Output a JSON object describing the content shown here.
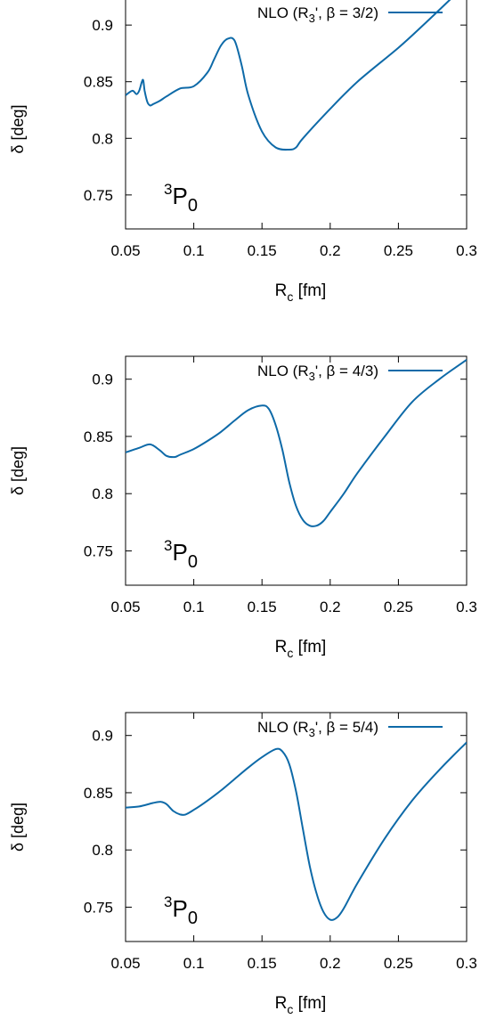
{
  "chart_data": [
    {
      "type": "line",
      "xlabel": "R",
      "xlabel_sub": "c",
      "xlabel_unit": " [fm]",
      "ylabel": "δ [deg]",
      "xlim": [
        0.05,
        0.3
      ],
      "ylim": [
        0.72,
        0.93
      ],
      "xticks": [
        0.05,
        0.1,
        0.15,
        0.2,
        0.25,
        0.3
      ],
      "xtick_labels": [
        "0.05",
        "0.1",
        "0.15",
        "0.2",
        "0.25",
        "0.3"
      ],
      "yticks": [
        0.75,
        0.8,
        0.85,
        0.9
      ],
      "ytick_labels": [
        "0.75",
        "0.8",
        "0.85",
        "0.9"
      ],
      "grid": false,
      "legend_position": "top-right",
      "annotation": {
        "sup": "3",
        "main": "P",
        "sub": "0"
      },
      "series": [
        {
          "name": "NLO (R3', β = 3/2)",
          "legend": {
            "pre": "NLO (R",
            "sub": "3",
            "post": "', β = 3/2)"
          },
          "color": "#0e6aa8",
          "x": [
            0.05,
            0.055,
            0.058,
            0.06,
            0.062,
            0.063,
            0.064,
            0.066,
            0.068,
            0.07,
            0.075,
            0.08,
            0.09,
            0.1,
            0.11,
            0.115,
            0.12,
            0.125,
            0.13,
            0.135,
            0.14,
            0.15,
            0.16,
            0.17,
            0.175,
            0.18,
            0.2,
            0.22,
            0.25,
            0.27,
            0.29
          ],
          "y": [
            0.838,
            0.842,
            0.839,
            0.842,
            0.85,
            0.851,
            0.842,
            0.832,
            0.829,
            0.83,
            0.833,
            0.837,
            0.844,
            0.846,
            0.858,
            0.87,
            0.882,
            0.888,
            0.886,
            0.865,
            0.838,
            0.806,
            0.792,
            0.79,
            0.792,
            0.8,
            0.826,
            0.85,
            0.88,
            0.902,
            0.925
          ]
        }
      ]
    },
    {
      "type": "line",
      "xlabel": "R",
      "xlabel_sub": "c",
      "xlabel_unit": " [fm]",
      "ylabel": "δ [deg]",
      "xlim": [
        0.05,
        0.3
      ],
      "ylim": [
        0.72,
        0.92
      ],
      "xticks": [
        0.05,
        0.1,
        0.15,
        0.2,
        0.25,
        0.3
      ],
      "xtick_labels": [
        "0.05",
        "0.1",
        "0.15",
        "0.2",
        "0.25",
        "0.3"
      ],
      "yticks": [
        0.75,
        0.8,
        0.85,
        0.9
      ],
      "ytick_labels": [
        "0.75",
        "0.8",
        "0.85",
        "0.9"
      ],
      "grid": false,
      "legend_position": "top-right",
      "annotation": {
        "sup": "3",
        "main": "P",
        "sub": "0"
      },
      "series": [
        {
          "name": "NLO (R3', β = 4/3)",
          "legend": {
            "pre": "NLO (R",
            "sub": "3",
            "post": "', β = 4/3)"
          },
          "color": "#0e6aa8",
          "x": [
            0.05,
            0.06,
            0.068,
            0.075,
            0.08,
            0.086,
            0.09,
            0.1,
            0.11,
            0.12,
            0.13,
            0.14,
            0.15,
            0.155,
            0.16,
            0.165,
            0.17,
            0.175,
            0.18,
            0.185,
            0.19,
            0.195,
            0.2,
            0.21,
            0.22,
            0.24,
            0.26,
            0.28,
            0.3
          ],
          "y": [
            0.836,
            0.84,
            0.843,
            0.838,
            0.833,
            0.832,
            0.834,
            0.839,
            0.846,
            0.854,
            0.864,
            0.873,
            0.877,
            0.874,
            0.86,
            0.838,
            0.81,
            0.789,
            0.777,
            0.772,
            0.772,
            0.776,
            0.784,
            0.8,
            0.818,
            0.85,
            0.88,
            0.9,
            0.917
          ]
        }
      ]
    },
    {
      "type": "line",
      "xlabel": "R",
      "xlabel_sub": "c",
      "xlabel_unit": " [fm]",
      "ylabel": "δ [deg]",
      "xlim": [
        0.05,
        0.3
      ],
      "ylim": [
        0.72,
        0.92
      ],
      "xticks": [
        0.05,
        0.1,
        0.15,
        0.2,
        0.25,
        0.3
      ],
      "xtick_labels": [
        "0.05",
        "0.1",
        "0.15",
        "0.2",
        "0.25",
        "0.3"
      ],
      "yticks": [
        0.75,
        0.8,
        0.85,
        0.9
      ],
      "ytick_labels": [
        "0.75",
        "0.8",
        "0.85",
        "0.9"
      ],
      "grid": false,
      "legend_position": "top-right",
      "annotation": {
        "sup": "3",
        "main": "P",
        "sub": "0"
      },
      "series": [
        {
          "name": "NLO (R3', β = 5/4)",
          "legend": {
            "pre": "NLO (R",
            "sub": "3",
            "post": "', β = 5/4)"
          },
          "color": "#0e6aa8",
          "x": [
            0.05,
            0.06,
            0.07,
            0.076,
            0.08,
            0.085,
            0.09,
            0.094,
            0.1,
            0.11,
            0.12,
            0.13,
            0.14,
            0.15,
            0.16,
            0.165,
            0.17,
            0.175,
            0.18,
            0.185,
            0.19,
            0.195,
            0.2,
            0.205,
            0.21,
            0.22,
            0.24,
            0.26,
            0.28,
            0.3
          ],
          "y": [
            0.837,
            0.838,
            0.841,
            0.842,
            0.84,
            0.834,
            0.831,
            0.831,
            0.835,
            0.843,
            0.852,
            0.862,
            0.872,
            0.881,
            0.888,
            0.886,
            0.875,
            0.851,
            0.818,
            0.786,
            0.762,
            0.746,
            0.739,
            0.741,
            0.749,
            0.771,
            0.81,
            0.843,
            0.87,
            0.894
          ]
        }
      ]
    }
  ]
}
